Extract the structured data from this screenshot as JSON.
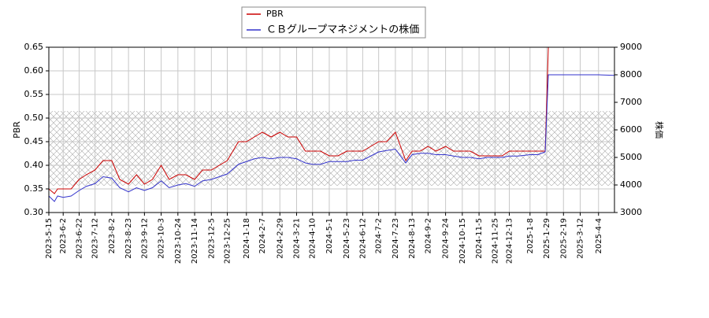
{
  "chart_data": {
    "type": "line",
    "x": [
      "2023-5-15",
      "2023-5-22",
      "2023-5-26",
      "2023-6-2",
      "2023-6-12",
      "2023-6-22",
      "2023-7-1",
      "2023-7-12",
      "2023-7-22",
      "2023-8-2",
      "2023-8-12",
      "2023-8-23",
      "2023-9-2",
      "2023-9-12",
      "2023-9-22",
      "2023-10-3",
      "2023-10-13",
      "2023-10-24",
      "2023-11-3",
      "2023-11-14",
      "2023-11-24",
      "2023-12-5",
      "2023-12-15",
      "2023-12-25",
      "2024-1-8",
      "2024-1-18",
      "2024-1-28",
      "2024-2-7",
      "2024-2-18",
      "2024-2-29",
      "2024-3-10",
      "2024-3-21",
      "2024-4-1",
      "2024-4-10",
      "2024-4-20",
      "2024-5-1",
      "2024-5-12",
      "2024-5-23",
      "2024-6-2",
      "2024-6-12",
      "2024-6-22",
      "2024-7-2",
      "2024-7-12",
      "2024-7-23",
      "2024-8-5",
      "2024-8-13",
      "2024-8-23",
      "2024-9-2",
      "2024-9-12",
      "2024-9-24",
      "2024-10-4",
      "2024-10-15",
      "2024-10-25",
      "2024-11-5",
      "2024-11-15",
      "2024-11-25",
      "2024-12-4",
      "2024-12-13",
      "2024-12-24",
      "2025-1-8",
      "2025-1-18",
      "2025-1-27",
      "2025-1-31",
      "2025-2-19",
      "2025-3-12",
      "2025-4-4",
      "2025-4-24"
    ],
    "series": [
      {
        "name": "PBR",
        "color": "#cc0000",
        "values": [
          0.35,
          0.34,
          0.35,
          0.35,
          0.35,
          0.37,
          0.38,
          0.39,
          0.41,
          0.41,
          0.37,
          0.36,
          0.38,
          0.36,
          0.37,
          0.4,
          0.37,
          0.38,
          0.38,
          0.37,
          0.39,
          0.39,
          0.4,
          0.41,
          0.45,
          0.45,
          0.46,
          0.47,
          0.46,
          0.47,
          0.46,
          0.46,
          0.43,
          0.43,
          0.43,
          0.42,
          0.42,
          0.43,
          0.43,
          0.43,
          0.44,
          0.45,
          0.45,
          0.47,
          0.41,
          0.43,
          0.43,
          0.44,
          0.43,
          0.44,
          0.43,
          0.43,
          0.43,
          0.42,
          0.42,
          0.42,
          0.42,
          0.43,
          0.43,
          0.43,
          0.43,
          0.43,
          0.65,
          0.65,
          0.65,
          0.65,
          0.65
        ]
      },
      {
        "name": "ＣＢグループマネジメントの株価",
        "color": "#3333cc",
        "axis": "y2",
        "values": [
          3600,
          3400,
          3600,
          3550,
          3600,
          3800,
          3950,
          4050,
          4300,
          4250,
          3900,
          3750,
          3900,
          3800,
          3900,
          4150,
          3900,
          4000,
          4050,
          3950,
          4150,
          4200,
          4300,
          4400,
          4750,
          4850,
          4950,
          5000,
          4950,
          5000,
          5000,
          4950,
          4800,
          4750,
          4750,
          4850,
          4850,
          4850,
          4900,
          4900,
          5050,
          5200,
          5250,
          5300,
          4800,
          5100,
          5150,
          5150,
          5100,
          5100,
          5050,
          5000,
          5000,
          4950,
          5000,
          5000,
          5000,
          5050,
          5050,
          5100,
          5100,
          5200,
          8000,
          8000,
          8000,
          8000,
          7980
        ]
      }
    ],
    "xlim": [
      "2023-5-15",
      "2025-4-24"
    ],
    "xticks": [
      "2023-5-15",
      "2023-6-2",
      "2023-6-22",
      "2023-7-12",
      "2023-8-2",
      "2023-8-23",
      "2023-9-12",
      "2023-10-3",
      "2023-10-24",
      "2023-11-14",
      "2023-12-5",
      "2023-12-25",
      "2024-1-18",
      "2024-2-7",
      "2024-2-29",
      "2024-3-21",
      "2024-4-10",
      "2024-5-1",
      "2024-5-23",
      "2024-6-12",
      "2024-7-2",
      "2024-7-23",
      "2024-8-13",
      "2024-9-2",
      "2024-9-24",
      "2024-10-15",
      "2024-11-5",
      "2024-11-25",
      "2024-12-13",
      "2025-1-8",
      "2025-1-29",
      "2025-2-19",
      "2025-3-12",
      "2025-4-4"
    ],
    "ylim": [
      0.3,
      0.65
    ],
    "yticks": [
      {
        "value": 0.3,
        "label": "0.30"
      },
      0.35,
      {
        "value": 0.4,
        "label": "0.40"
      },
      0.45,
      {
        "value": 0.5,
        "label": "0.50"
      },
      0.55,
      {
        "value": 0.6,
        "label": "0.60"
      },
      0.65
    ],
    "y2lim": [
      3000,
      9000
    ],
    "y2ticks": [
      3000,
      4000,
      5000,
      6000,
      7000,
      8000,
      9000
    ],
    "ylabel": "PBR",
    "y2label": "株価",
    "grid": true
  }
}
